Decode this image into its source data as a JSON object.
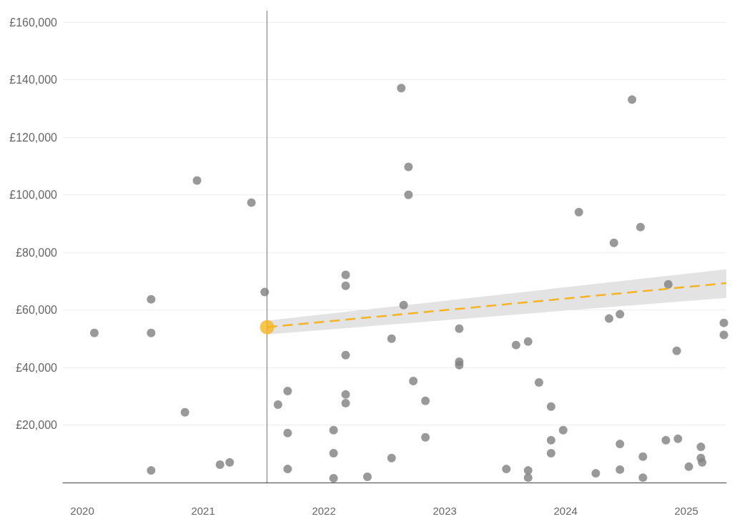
{
  "chart_data": {
    "type": "scatter",
    "xlim": [
      2019.84,
      2025.33
    ],
    "ylim": [
      0,
      164000
    ],
    "xticks": [
      2020,
      2021,
      2022,
      2023,
      2024,
      2025
    ],
    "yticks": [
      {
        "value": 20000,
        "label": "£20,000"
      },
      {
        "value": 40000,
        "label": "£40,000"
      },
      {
        "value": 60000,
        "label": "£60,000"
      },
      {
        "value": 80000,
        "label": "£80,000"
      },
      {
        "value": 100000,
        "label": "£100,000"
      },
      {
        "value": 120000,
        "label": "£120,000"
      },
      {
        "value": 140000,
        "label": "£140,000"
      },
      {
        "value": 160000,
        "label": "£160,000"
      }
    ],
    "grid": "y",
    "marker": "circle",
    "ref_lines": [
      {
        "axis": "x",
        "value": 2021.53,
        "color": "#777777"
      }
    ],
    "series": [
      {
        "color": "#808080",
        "x": [
          2020.1,
          2020.57,
          2020.57,
          2020.57,
          2020.85,
          2020.95,
          2021.14,
          2021.22,
          2021.4,
          2021.51,
          2021.62,
          2021.7,
          2021.7,
          2021.7,
          2022.08,
          2022.08,
          2022.08,
          2022.18,
          2022.18,
          2022.18,
          2022.18,
          2022.18,
          2022.36,
          2022.56,
          2022.56,
          2022.64,
          2022.66,
          2022.7,
          2022.7,
          2022.74,
          2022.84,
          2022.84,
          2023.12,
          2023.12,
          2023.12,
          2023.51,
          2023.59,
          2023.69,
          2023.69,
          2023.69,
          2023.78,
          2023.88,
          2023.88,
          2023.88,
          2023.98,
          2024.11,
          2024.25,
          2024.36,
          2024.4,
          2024.45,
          2024.45,
          2024.45,
          2024.55,
          2024.62,
          2024.64,
          2024.64,
          2024.83,
          2024.85,
          2024.92,
          2024.93,
          2025.02,
          2025.12,
          2025.12,
          2025.13,
          2025.31,
          2025.31
        ],
        "values": [
          52000,
          63700,
          52000,
          4200,
          24400,
          105000,
          6200,
          7000,
          97300,
          66200,
          27100,
          31800,
          17200,
          4700,
          18200,
          10200,
          1500,
          72200,
          68400,
          44300,
          30600,
          27600,
          2000,
          50000,
          8500,
          137100,
          61700,
          109700,
          100000,
          35300,
          28400,
          15700,
          42000,
          40800,
          53500,
          4700,
          47800,
          49000,
          4200,
          1700,
          34800,
          26400,
          14700,
          10200,
          18200,
          94000,
          3200,
          57000,
          83300,
          58500,
          13400,
          4500,
          133100,
          88800,
          9000,
          1700,
          14700,
          68900,
          45800,
          15200,
          5500,
          12400,
          8500,
          7000,
          55500,
          51300
        ]
      },
      {
        "type": "line",
        "color": "#f5b324",
        "line_style": "dashed",
        "marker": "none",
        "x": [
          2021.53,
          2025.33
        ],
        "values": [
          54000,
          69300
        ],
        "lower": [
          51500,
          64200
        ],
        "upper": [
          56300,
          74100
        ]
      },
      {
        "color": "#f8b51f",
        "x": [
          2021.53
        ],
        "values": [
          54000
        ]
      }
    ]
  }
}
